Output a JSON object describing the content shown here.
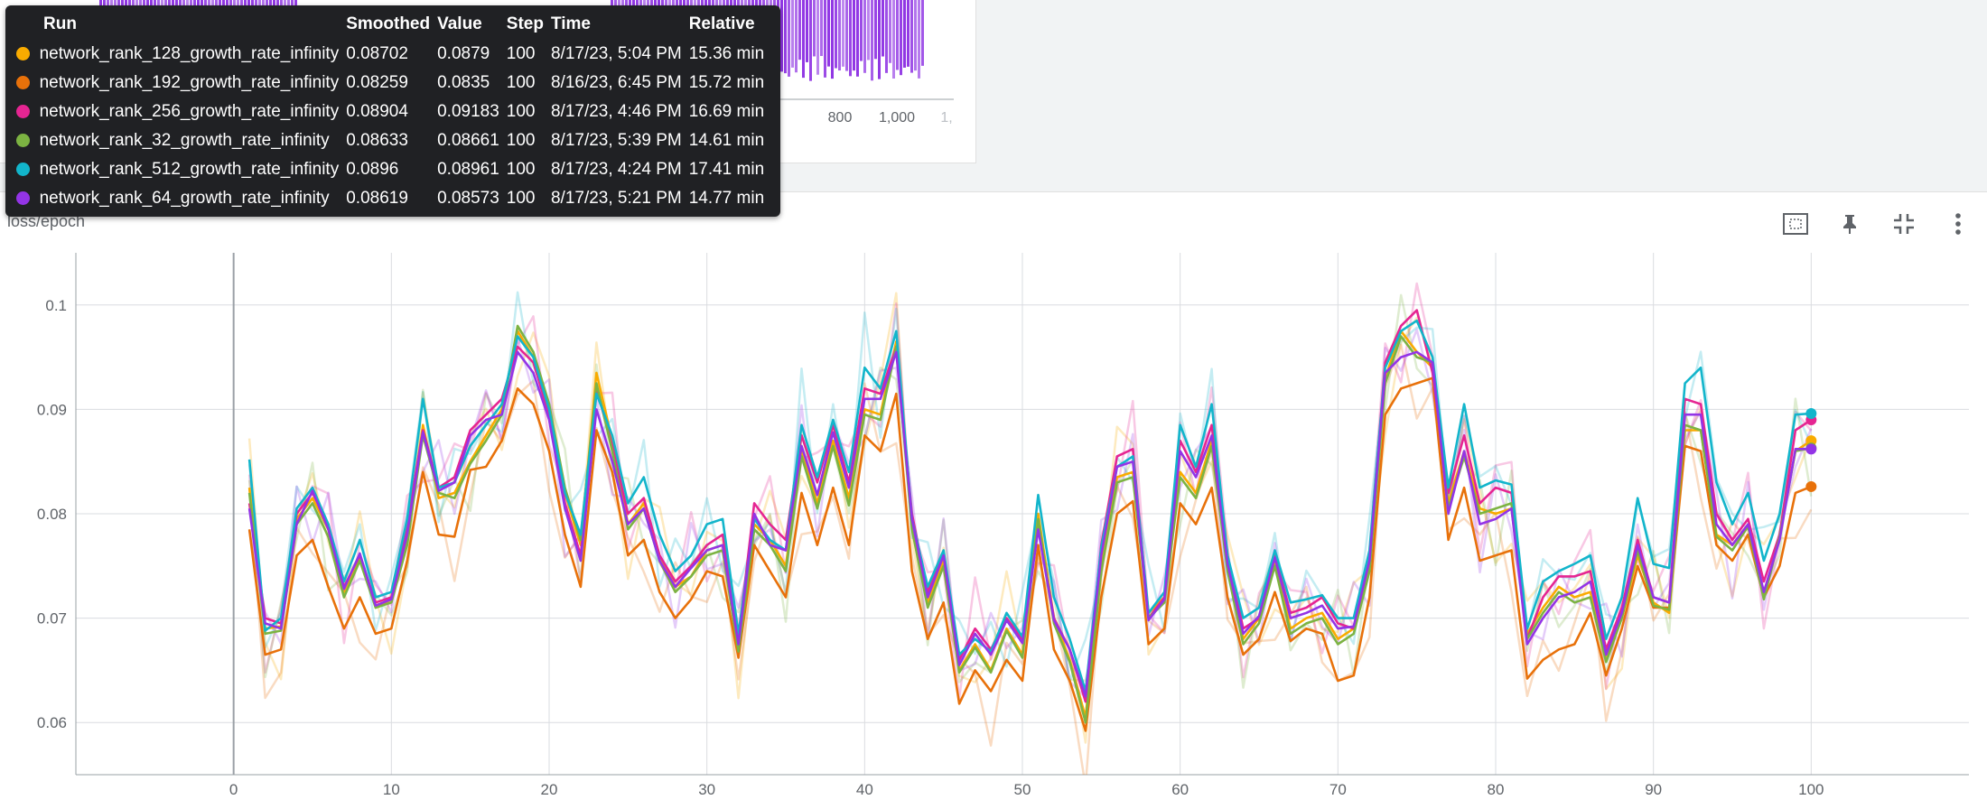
{
  "card_title": "loss/epoch",
  "top_chart": {
    "x_tick_labels": [
      "800",
      "1,000",
      "1,"
    ],
    "bar_color": "#8a2be2"
  },
  "toolbar": [
    {
      "icon": "fit-domain-icon"
    },
    {
      "icon": "pin-icon"
    },
    {
      "icon": "collapse-icon"
    },
    {
      "icon": "more-vert-icon"
    }
  ],
  "tooltip": {
    "headers": [
      "Run",
      "Smoothed",
      "Value",
      "Step",
      "Time",
      "Relative"
    ],
    "rows": [
      {
        "color": "#f9ab00",
        "run": "network_rank_128_growth_rate_infinity",
        "smoothed": "0.08702",
        "value": "0.0879",
        "step": "100",
        "time": "8/17/23, 5:04 PM",
        "relative": "15.36 min"
      },
      {
        "color": "#e8710a",
        "run": "network_rank_192_growth_rate_infinity",
        "smoothed": "0.08259",
        "value": "0.0835",
        "step": "100",
        "time": "8/16/23, 6:45 PM",
        "relative": "15.72 min"
      },
      {
        "color": "#e52592",
        "run": "network_rank_256_growth_rate_infinity",
        "smoothed": "0.08904",
        "value": "0.09183",
        "step": "100",
        "time": "8/17/23, 4:46 PM",
        "relative": "16.69 min"
      },
      {
        "color": "#7cb342",
        "run": "network_rank_32_growth_rate_infinity",
        "smoothed": "0.08633",
        "value": "0.08661",
        "step": "100",
        "time": "8/17/23, 5:39 PM",
        "relative": "14.61 min"
      },
      {
        "color": "#12b5cb",
        "run": "network_rank_512_growth_rate_infinity",
        "smoothed": "0.0896",
        "value": "0.08961",
        "step": "100",
        "time": "8/17/23, 4:24 PM",
        "relative": "17.41 min"
      },
      {
        "color": "#9334e6",
        "run": "network_rank_64_growth_rate_infinity",
        "smoothed": "0.08619",
        "value": "0.08573",
        "step": "100",
        "time": "8/17/23, 5:21 PM",
        "relative": "14.77 min"
      }
    ]
  },
  "chart_data": {
    "type": "line",
    "x": [
      1,
      2,
      3,
      4,
      5,
      6,
      7,
      8,
      9,
      10,
      11,
      12,
      13,
      14,
      15,
      16,
      17,
      18,
      19,
      20,
      21,
      22,
      23,
      24,
      25,
      26,
      27,
      28,
      29,
      30,
      31,
      32,
      33,
      34,
      35,
      36,
      37,
      38,
      39,
      40,
      41,
      42,
      43,
      44,
      45,
      46,
      47,
      48,
      49,
      50,
      51,
      52,
      53,
      54,
      55,
      56,
      57,
      58,
      59,
      60,
      61,
      62,
      63,
      64,
      65,
      66,
      67,
      68,
      69,
      70,
      71,
      72,
      73,
      74,
      75,
      76,
      77,
      78,
      79,
      80,
      81,
      82,
      83,
      84,
      85,
      86,
      87,
      88,
      89,
      90,
      91,
      92,
      93,
      94,
      95,
      96,
      97,
      98,
      99,
      100
    ],
    "xticks": [
      0,
      10,
      20,
      30,
      40,
      50,
      60,
      70,
      80,
      90,
      100
    ],
    "yticks": [
      0.06,
      0.07,
      0.08,
      0.09,
      0.1
    ],
    "xlim": [
      -10,
      110
    ],
    "ylim": [
      0.055,
      0.105
    ],
    "grid": true,
    "series": [
      {
        "name": "network_rank_128_growth_rate_infinity",
        "color": "#f9ab00",
        "values": [
          0.0825,
          0.069,
          0.0692,
          0.0795,
          0.0815,
          0.0785,
          0.0725,
          0.076,
          0.071,
          0.0718,
          0.0775,
          0.0885,
          0.0815,
          0.082,
          0.085,
          0.0875,
          0.09,
          0.0975,
          0.095,
          0.09,
          0.082,
          0.077,
          0.0935,
          0.087,
          0.079,
          0.081,
          0.076,
          0.073,
          0.074,
          0.0765,
          0.077,
          0.067,
          0.079,
          0.0775,
          0.075,
          0.086,
          0.081,
          0.087,
          0.0815,
          0.09,
          0.0895,
          0.0965,
          0.079,
          0.0715,
          0.0755,
          0.065,
          0.0675,
          0.065,
          0.069,
          0.0665,
          0.08,
          0.07,
          0.066,
          0.0605,
          0.075,
          0.0835,
          0.084,
          0.0705,
          0.072,
          0.084,
          0.082,
          0.087,
          0.075,
          0.068,
          0.07,
          0.0755,
          0.069,
          0.07,
          0.0705,
          0.068,
          0.069,
          0.075,
          0.093,
          0.0975,
          0.0955,
          0.094,
          0.081,
          0.086,
          0.0805,
          0.08,
          0.0805,
          0.0685,
          0.071,
          0.073,
          0.072,
          0.0725,
          0.066,
          0.07,
          0.076,
          0.0715,
          0.0705,
          0.088,
          0.088,
          0.078,
          0.077,
          0.079,
          0.072,
          0.078,
          0.086,
          0.087
        ]
      },
      {
        "name": "network_rank_192_growth_rate_infinity",
        "color": "#e8710a",
        "values": [
          0.0785,
          0.0665,
          0.067,
          0.076,
          0.0775,
          0.073,
          0.069,
          0.072,
          0.0685,
          0.069,
          0.0755,
          0.084,
          0.078,
          0.0778,
          0.0842,
          0.0845,
          0.087,
          0.092,
          0.0905,
          0.086,
          0.078,
          0.073,
          0.088,
          0.084,
          0.076,
          0.0775,
          0.0725,
          0.07,
          0.0718,
          0.0745,
          0.074,
          0.0662,
          0.077,
          0.0745,
          0.072,
          0.082,
          0.077,
          0.0825,
          0.077,
          0.0875,
          0.086,
          0.0915,
          0.0745,
          0.068,
          0.0715,
          0.0618,
          0.065,
          0.063,
          0.066,
          0.064,
          0.077,
          0.067,
          0.064,
          0.0592,
          0.072,
          0.08,
          0.0812,
          0.0675,
          0.069,
          0.081,
          0.079,
          0.0825,
          0.072,
          0.0665,
          0.068,
          0.0725,
          0.0678,
          0.069,
          0.0685,
          0.064,
          0.0645,
          0.072,
          0.0895,
          0.092,
          0.0925,
          0.093,
          0.0775,
          0.0825,
          0.0755,
          0.076,
          0.0765,
          0.0642,
          0.066,
          0.067,
          0.0675,
          0.0705,
          0.0645,
          0.069,
          0.075,
          0.071,
          0.071,
          0.0865,
          0.086,
          0.077,
          0.0755,
          0.078,
          0.072,
          0.075,
          0.082,
          0.0826
        ]
      },
      {
        "name": "network_rank_256_growth_rate_infinity",
        "color": "#e52592",
        "values": [
          0.081,
          0.07,
          0.0695,
          0.08,
          0.082,
          0.079,
          0.073,
          0.076,
          0.0715,
          0.072,
          0.079,
          0.088,
          0.0825,
          0.0835,
          0.088,
          0.0895,
          0.091,
          0.096,
          0.0945,
          0.0895,
          0.081,
          0.076,
          0.092,
          0.0865,
          0.08,
          0.0815,
          0.076,
          0.0735,
          0.075,
          0.077,
          0.078,
          0.068,
          0.081,
          0.079,
          0.0775,
          0.0875,
          0.083,
          0.0885,
          0.083,
          0.092,
          0.0915,
          0.096,
          0.08,
          0.0725,
          0.076,
          0.066,
          0.069,
          0.067,
          0.07,
          0.068,
          0.079,
          0.07,
          0.067,
          0.062,
          0.077,
          0.0855,
          0.0862,
          0.07,
          0.072,
          0.087,
          0.084,
          0.0885,
          0.076,
          0.069,
          0.07,
          0.076,
          0.0705,
          0.071,
          0.072,
          0.0695,
          0.069,
          0.076,
          0.0945,
          0.098,
          0.0995,
          0.0935,
          0.082,
          0.0875,
          0.081,
          0.0825,
          0.082,
          0.068,
          0.072,
          0.074,
          0.074,
          0.0745,
          0.067,
          0.071,
          0.0775,
          0.072,
          0.0715,
          0.091,
          0.0905,
          0.08,
          0.0775,
          0.0795,
          0.0735,
          0.078,
          0.088,
          0.089
        ]
      },
      {
        "name": "network_rank_32_growth_rate_infinity",
        "color": "#7cb342",
        "values": [
          0.082,
          0.0685,
          0.0688,
          0.079,
          0.081,
          0.0778,
          0.072,
          0.0755,
          0.071,
          0.0715,
          0.077,
          0.0875,
          0.082,
          0.0815,
          0.0848,
          0.087,
          0.0895,
          0.098,
          0.0955,
          0.0905,
          0.0825,
          0.0775,
          0.0925,
          0.086,
          0.0785,
          0.0805,
          0.0755,
          0.0725,
          0.074,
          0.076,
          0.0765,
          0.0668,
          0.0785,
          0.077,
          0.0745,
          0.0855,
          0.0805,
          0.0865,
          0.0808,
          0.0895,
          0.089,
          0.096,
          0.0785,
          0.071,
          0.075,
          0.0648,
          0.0672,
          0.0648,
          0.0688,
          0.0662,
          0.0795,
          0.0695,
          0.0658,
          0.06,
          0.0745,
          0.083,
          0.0835,
          0.07,
          0.0715,
          0.0835,
          0.0815,
          0.0865,
          0.0745,
          0.0675,
          0.0695,
          0.075,
          0.0685,
          0.0695,
          0.07,
          0.0675,
          0.0685,
          0.0745,
          0.0925,
          0.097,
          0.095,
          0.0945,
          0.0805,
          0.0855,
          0.08,
          0.0805,
          0.081,
          0.068,
          0.0705,
          0.0725,
          0.0715,
          0.072,
          0.0658,
          0.07,
          0.0765,
          0.0712,
          0.0708,
          0.0885,
          0.088,
          0.0778,
          0.0765,
          0.0788,
          0.0718,
          0.0778,
          0.086,
          0.0863
        ]
      },
      {
        "name": "network_rank_512_growth_rate_infinity",
        "color": "#12b5cb",
        "values": [
          0.0852,
          0.0688,
          0.07,
          0.0805,
          0.0825,
          0.079,
          0.0735,
          0.0775,
          0.072,
          0.0725,
          0.0795,
          0.091,
          0.0825,
          0.083,
          0.0865,
          0.0885,
          0.0905,
          0.097,
          0.095,
          0.09,
          0.082,
          0.078,
          0.0915,
          0.0875,
          0.081,
          0.0835,
          0.078,
          0.0745,
          0.076,
          0.079,
          0.0795,
          0.0685,
          0.0795,
          0.0775,
          0.0765,
          0.0885,
          0.0835,
          0.089,
          0.084,
          0.094,
          0.092,
          0.0975,
          0.0795,
          0.073,
          0.0765,
          0.0665,
          0.068,
          0.0668,
          0.0705,
          0.0682,
          0.0818,
          0.072,
          0.068,
          0.063,
          0.0768,
          0.0845,
          0.0855,
          0.0705,
          0.0725,
          0.0885,
          0.0845,
          0.0905,
          0.076,
          0.07,
          0.071,
          0.0765,
          0.0715,
          0.0718,
          0.0722,
          0.07,
          0.07,
          0.0765,
          0.094,
          0.0975,
          0.0985,
          0.095,
          0.0825,
          0.0905,
          0.0825,
          0.0832,
          0.0828,
          0.069,
          0.0735,
          0.0745,
          0.0752,
          0.076,
          0.068,
          0.072,
          0.0815,
          0.0752,
          0.0748,
          0.0925,
          0.094,
          0.083,
          0.079,
          0.082,
          0.0755,
          0.08,
          0.0895,
          0.0896
        ]
      },
      {
        "name": "network_rank_64_growth_rate_infinity",
        "color": "#9334e6",
        "values": [
          0.0805,
          0.0695,
          0.069,
          0.079,
          0.0822,
          0.0785,
          0.0728,
          0.0762,
          0.0712,
          0.0718,
          0.078,
          0.0878,
          0.0822,
          0.083,
          0.0875,
          0.089,
          0.0895,
          0.0955,
          0.0935,
          0.089,
          0.0805,
          0.0755,
          0.09,
          0.085,
          0.079,
          0.0805,
          0.0755,
          0.073,
          0.0748,
          0.0765,
          0.077,
          0.0675,
          0.08,
          0.077,
          0.0765,
          0.0865,
          0.0818,
          0.0878,
          0.0825,
          0.091,
          0.091,
          0.0955,
          0.0795,
          0.072,
          0.076,
          0.0655,
          0.0685,
          0.0665,
          0.0698,
          0.0676,
          0.0785,
          0.0698,
          0.067,
          0.0625,
          0.076,
          0.0845,
          0.085,
          0.0698,
          0.0718,
          0.086,
          0.0835,
          0.0875,
          0.0752,
          0.0685,
          0.0702,
          0.0758,
          0.07,
          0.0705,
          0.0712,
          0.069,
          0.0692,
          0.0755,
          0.0935,
          0.095,
          0.0955,
          0.0945,
          0.08,
          0.086,
          0.079,
          0.0795,
          0.0805,
          0.0675,
          0.07,
          0.072,
          0.0725,
          0.0735,
          0.0665,
          0.0705,
          0.077,
          0.072,
          0.0715,
          0.0895,
          0.0895,
          0.079,
          0.077,
          0.079,
          0.0725,
          0.0775,
          0.0862,
          0.0862
        ]
      }
    ]
  }
}
